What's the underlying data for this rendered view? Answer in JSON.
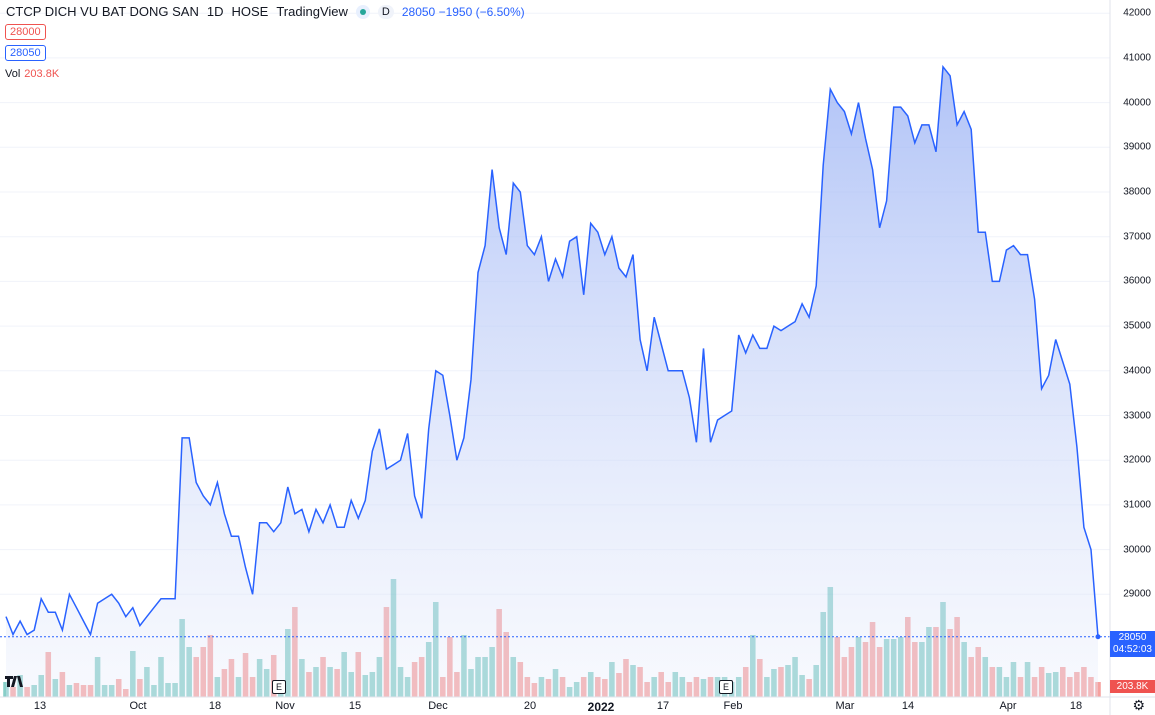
{
  "legend": {
    "symbol": "CTCP DICH VU BAT DONG SAN",
    "interval": "1D",
    "exchange": "HOSE",
    "source": "TradingView",
    "status_badge": "D",
    "last_price": "28050",
    "change": "−1950",
    "change_pct": "(−6.50%)",
    "tag_low": "28000",
    "tag_last": "28050",
    "vol_label": "Vol",
    "vol_value": "203.8K"
  },
  "price_axis": {
    "ticks": [
      "42000",
      "41000",
      "40000",
      "39000",
      "38000",
      "37000",
      "36000",
      "35000",
      "34000",
      "33000",
      "32000",
      "31000",
      "30000",
      "29000"
    ],
    "last_price_label": "28050",
    "countdown": "04:52:03",
    "volume_label": "203.8K"
  },
  "time_axis": {
    "labels": [
      "13",
      "Oct",
      "18",
      "Nov",
      "15",
      "Dec",
      "20",
      "2022",
      "17",
      "Feb",
      "Mar",
      "14",
      "Apr",
      "18"
    ]
  },
  "earnings_markers": [
    "E",
    "E"
  ],
  "colors": {
    "line": "#2962ff",
    "area_top": "#b9c9f7",
    "vol_up": "#26a69a",
    "vol_down": "#ef5350"
  },
  "chart_data": {
    "type": "area",
    "title": "CTCP DICH VU BAT DONG SAN",
    "ylim": [
      28000,
      42000
    ],
    "grid": true,
    "legend_position": "top-left",
    "price": [
      28500,
      28100,
      28400,
      28100,
      28200,
      28900,
      28600,
      28600,
      28200,
      29000,
      28700,
      28400,
      28100,
      28800,
      28900,
      29000,
      28800,
      28500,
      28700,
      28300,
      28500,
      28700,
      28900,
      28900,
      28900,
      32500,
      32500,
      31500,
      31200,
      31000,
      31500,
      30800,
      30300,
      30300,
      29600,
      29000,
      30600,
      30600,
      30400,
      30600,
      31400,
      30800,
      30900,
      30400,
      30900,
      30600,
      31000,
      30500,
      30500,
      31100,
      30700,
      31100,
      32200,
      32700,
      31800,
      31900,
      32000,
      32600,
      31200,
      30700,
      32700,
      34000,
      33900,
      33000,
      32000,
      32500,
      33800,
      36200,
      36800,
      38500,
      37200,
      36600,
      38200,
      38000,
      36800,
      36600,
      37000,
      36000,
      36500,
      36100,
      36900,
      37000,
      35700,
      37300,
      37100,
      36600,
      37000,
      36300,
      36100,
      36600,
      34700,
      34000,
      35200,
      34600,
      34000,
      34000,
      34000,
      33400,
      32400,
      34500,
      32400,
      32900,
      33000,
      33100,
      34800,
      34400,
      34800,
      34500,
      34500,
      35000,
      34900,
      35000,
      35100,
      35500,
      35200,
      35900,
      38600,
      40300,
      40000,
      39800,
      39300,
      40000,
      39200,
      38500,
      37200,
      37800,
      39900,
      39900,
      39700,
      39100,
      39500,
      39500,
      38900,
      40800,
      40600,
      39500,
      39800,
      39400,
      37100,
      37100,
      36000,
      36000,
      36700,
      36800,
      36600,
      36600,
      35600,
      33600,
      33900,
      34700,
      34200,
      33700,
      32300,
      30500,
      30000,
      28050
    ],
    "volume_scaled": [
      15,
      10,
      22,
      10,
      12,
      22,
      45,
      18,
      25,
      12,
      14,
      12,
      12,
      40,
      12,
      12,
      18,
      8,
      46,
      18,
      30,
      12,
      40,
      14,
      14,
      78,
      50,
      40,
      50,
      62,
      20,
      28,
      38,
      20,
      44,
      20,
      38,
      28,
      42,
      14,
      68,
      90,
      38,
      25,
      30,
      40,
      30,
      28,
      45,
      25,
      45,
      22,
      25,
      40,
      90,
      118,
      30,
      20,
      35,
      40,
      55,
      95,
      20,
      60,
      25,
      62,
      28,
      40,
      40,
      50,
      88,
      65,
      40,
      35,
      20,
      14,
      20,
      18,
      28,
      20,
      10,
      15,
      20,
      25,
      20,
      18,
      35,
      24,
      38,
      32,
      30,
      15,
      20,
      25,
      15,
      25,
      20,
      15,
      20,
      18,
      20,
      20,
      20,
      15,
      20,
      30,
      62,
      38,
      20,
      28,
      30,
      32,
      40,
      22,
      18,
      32,
      85,
      110,
      60,
      40,
      50,
      60,
      55,
      75,
      50,
      58,
      58,
      60,
      80,
      55,
      55,
      70,
      70,
      95,
      68,
      80,
      55,
      40,
      50,
      40,
      30,
      30,
      20,
      35,
      20,
      35,
      20,
      30,
      24,
      25,
      30,
      20,
      25,
      30,
      20,
      15
    ]
  }
}
